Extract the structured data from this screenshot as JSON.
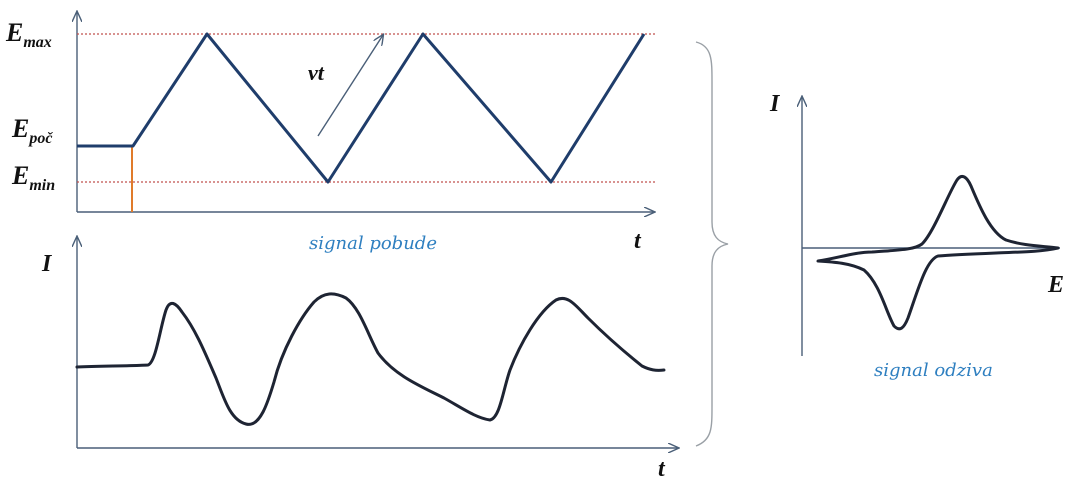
{
  "excitation": {
    "label_emax": "max",
    "label_epoc": "poč",
    "label_emin": "min",
    "label_E": "E",
    "sweep_label": "vt",
    "time_label": "t",
    "caption": "signal pobude"
  },
  "current_time": {
    "ylabel": "I",
    "xlabel": "t"
  },
  "voltammogram": {
    "ylabel": "I",
    "xlabel": "E",
    "caption": "signal odziva"
  },
  "colors": {
    "waveform": "#1f3d6b",
    "reference_lines": "#c0504d",
    "start_marker": "#e07b2a",
    "caption": "#2e7fc0"
  }
}
